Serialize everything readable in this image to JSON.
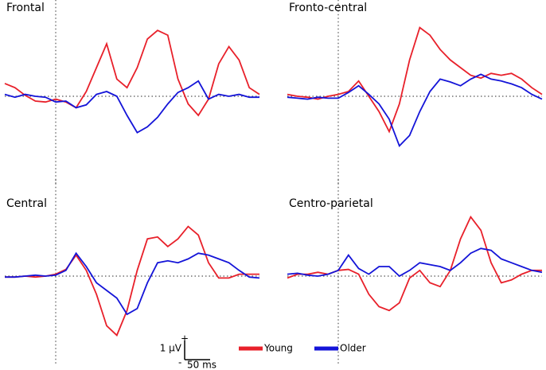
{
  "chart_data": [
    {
      "type": "line",
      "title": "Frontal",
      "x": [
        -100,
        -80,
        -60,
        -40,
        -20,
        0,
        20,
        40,
        60,
        80,
        100,
        120,
        140,
        160,
        180,
        200,
        220,
        240,
        260,
        280,
        300,
        320,
        340,
        360,
        380,
        400
      ],
      "xlim": [
        -100,
        400
      ],
      "ylim": [
        -4.6,
        4.8
      ],
      "series": [
        {
          "name": "Young",
          "color": "#e8202a",
          "values": [
            0.67,
            0.45,
            0.05,
            -0.25,
            -0.3,
            -0.15,
            -0.3,
            -0.6,
            0.25,
            1.5,
            2.75,
            0.9,
            0.45,
            1.5,
            3.0,
            3.45,
            3.2,
            0.9,
            -0.4,
            -1.0,
            -0.15,
            1.7,
            2.6,
            1.9,
            0.45,
            0.1
          ]
        },
        {
          "name": "Older",
          "color": "#1414d8",
          "values": [
            0.1,
            -0.05,
            0.1,
            0,
            -0.05,
            -0.3,
            -0.25,
            -0.6,
            -0.45,
            0.1,
            0.25,
            0,
            -1.0,
            -1.9,
            -1.6,
            -1.1,
            -0.4,
            0.2,
            0.45,
            0.8,
            -0.15,
            0.1,
            0,
            0.1,
            -0.05,
            -0.05
          ]
        }
      ]
    },
    {
      "type": "line",
      "title": "Fronto-central",
      "x": [
        -100,
        -80,
        -60,
        -40,
        -20,
        0,
        20,
        40,
        60,
        80,
        100,
        120,
        140,
        160,
        180,
        200,
        220,
        240,
        260,
        280,
        300,
        320,
        340,
        360,
        380,
        400
      ],
      "xlim": [
        -100,
        400
      ],
      "ylim": [
        -4.6,
        4.8
      ],
      "series": [
        {
          "name": "Young",
          "color": "#e8202a",
          "values": [
            0.1,
            0,
            -0.05,
            -0.15,
            0,
            0.1,
            0.25,
            0.8,
            0,
            -0.8,
            -1.85,
            -0.4,
            1.9,
            3.6,
            3.2,
            2.45,
            1.9,
            1.5,
            1.1,
            0.95,
            1.2,
            1.1,
            1.2,
            0.9,
            0.45,
            0.1
          ]
        },
        {
          "name": "Older",
          "color": "#1414d8",
          "values": [
            -0.05,
            -0.1,
            -0.15,
            -0.05,
            -0.1,
            -0.1,
            0.2,
            0.55,
            0.1,
            -0.4,
            -1.2,
            -2.6,
            -2.05,
            -0.8,
            0.25,
            0.9,
            0.75,
            0.55,
            0.9,
            1.15,
            0.9,
            0.8,
            0.65,
            0.45,
            0.1,
            -0.15
          ]
        }
      ]
    },
    {
      "type": "line",
      "title": "Central",
      "x": [
        -100,
        -80,
        -60,
        -40,
        -20,
        0,
        20,
        40,
        60,
        80,
        100,
        120,
        140,
        160,
        180,
        200,
        220,
        240,
        260,
        280,
        300,
        320,
        340,
        360,
        380,
        400
      ],
      "xlim": [
        -100,
        400
      ],
      "ylim": [
        -4.6,
        4.8
      ],
      "series": [
        {
          "name": "Young",
          "color": "#e8202a",
          "values": [
            -0.05,
            -0.05,
            0,
            -0.05,
            0,
            0.1,
            0.35,
            1.1,
            0.3,
            -0.95,
            -2.6,
            -3.1,
            -1.8,
            0.3,
            1.95,
            2.05,
            1.55,
            1.95,
            2.6,
            2.15,
            0.7,
            -0.1,
            -0.1,
            0.1,
            0.1,
            0.1
          ]
        },
        {
          "name": "Older",
          "color": "#1414d8",
          "values": [
            -0.05,
            -0.05,
            0,
            0.05,
            0,
            0.05,
            0.3,
            1.2,
            0.5,
            -0.35,
            -0.75,
            -1.15,
            -2.0,
            -1.7,
            -0.35,
            0.7,
            0.8,
            0.7,
            0.9,
            1.2,
            1.1,
            0.9,
            0.7,
            0.3,
            -0.05,
            -0.1
          ]
        }
      ]
    },
    {
      "type": "line",
      "title": "Centro-parietal",
      "x": [
        -100,
        -80,
        -60,
        -40,
        -20,
        0,
        20,
        40,
        60,
        80,
        100,
        120,
        140,
        160,
        180,
        200,
        220,
        240,
        260,
        280,
        300,
        320,
        340,
        360,
        380,
        400
      ],
      "xlim": [
        -100,
        400
      ],
      "ylim": [
        -4.6,
        4.8
      ],
      "series": [
        {
          "name": "Young",
          "color": "#e8202a",
          "values": [
            -0.1,
            0.1,
            0.1,
            0.2,
            0.1,
            0.3,
            0.35,
            0.1,
            -0.95,
            -1.6,
            -1.8,
            -1.4,
            -0.1,
            0.3,
            -0.35,
            -0.55,
            0.3,
            1.95,
            3.1,
            2.4,
            0.7,
            -0.35,
            -0.2,
            0.1,
            0.3,
            0.3
          ]
        },
        {
          "name": "Older",
          "color": "#1414d8",
          "values": [
            0.1,
            0.15,
            0.05,
            0,
            0.1,
            0.3,
            1.1,
            0.4,
            0.1,
            0.5,
            0.5,
            0,
            0.3,
            0.7,
            0.6,
            0.5,
            0.3,
            0.7,
            1.2,
            1.45,
            1.35,
            0.9,
            0.7,
            0.5,
            0.3,
            0.2
          ]
        }
      ]
    }
  ],
  "scale_bar": {
    "y": {
      "value": 1,
      "label": "1 µV"
    },
    "x": {
      "value": 50,
      "label": "50 ms"
    },
    "plus": "+",
    "minus": "-"
  }
}
